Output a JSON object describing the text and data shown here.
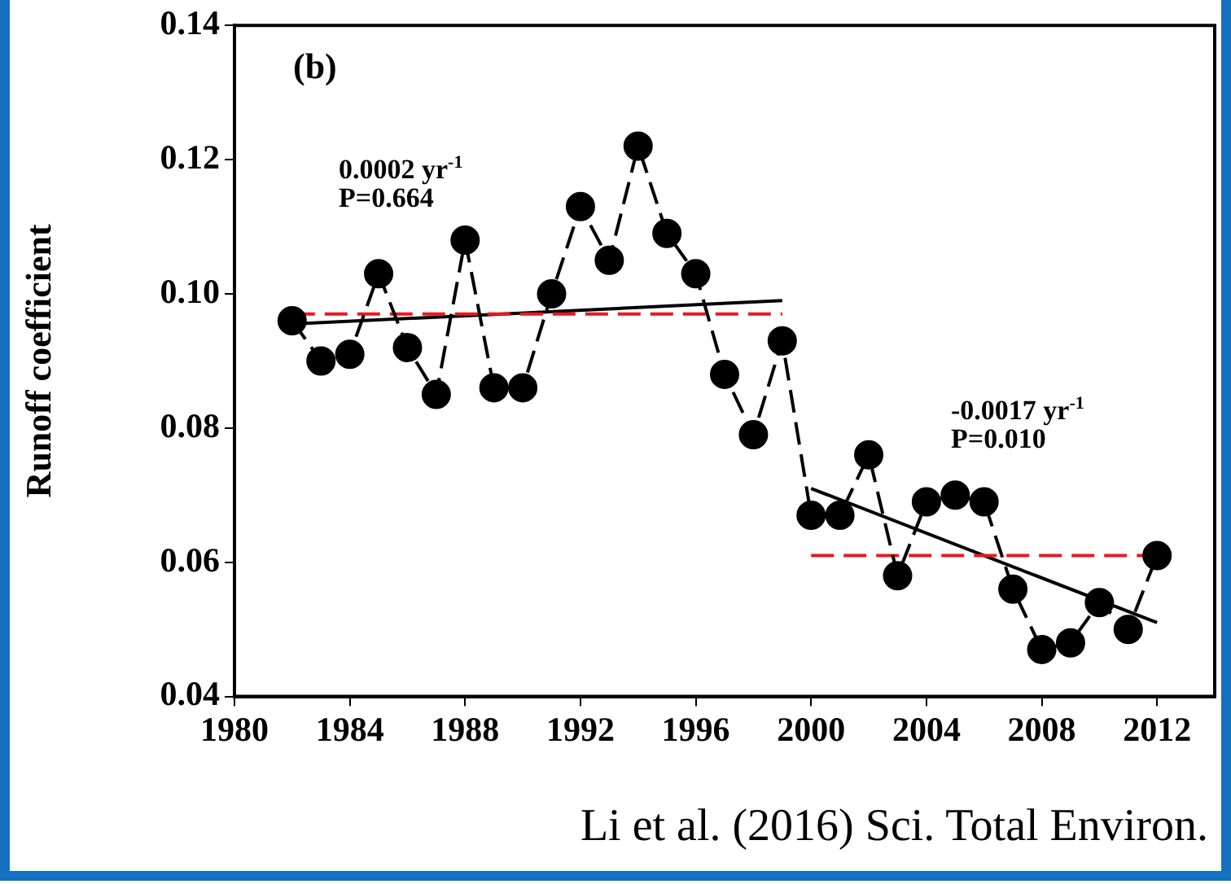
{
  "chart_data": {
    "type": "line",
    "ylabel": "Runoff coefficient",
    "x": [
      1982,
      1983,
      1984,
      1985,
      1986,
      1987,
      1988,
      1989,
      1990,
      1991,
      1992,
      1993,
      1994,
      1995,
      1996,
      1997,
      1998,
      1999,
      2000,
      2001,
      2002,
      2003,
      2004,
      2005,
      2006,
      2007,
      2008,
      2009,
      2010,
      2011,
      2012
    ],
    "series": [
      {
        "color": "#000000",
        "marker": "circle",
        "line_style": "dashed",
        "values": [
          0.096,
          0.09,
          0.091,
          0.103,
          0.092,
          0.085,
          0.108,
          0.086,
          0.086,
          0.1,
          0.113,
          0.105,
          0.122,
          0.109,
          0.103,
          0.088,
          0.079,
          0.093,
          0.067,
          0.067,
          0.076,
          0.058,
          0.069,
          0.07,
          0.069,
          0.056,
          0.047,
          0.048,
          0.054,
          0.05,
          0.061
        ]
      },
      {
        "color": "#e8191e",
        "marker": "none",
        "line_style": "dashed",
        "x": [
          1982,
          1999
        ],
        "values": [
          0.097,
          0.097
        ]
      },
      {
        "color": "#e8191e",
        "marker": "none",
        "line_style": "dashed",
        "x": [
          2000,
          2012
        ],
        "values": [
          0.061,
          0.061
        ]
      },
      {
        "color": "#000000",
        "marker": "none",
        "line_style": "solid",
        "x": [
          1982,
          1999
        ],
        "values": [
          0.0955,
          0.099
        ]
      },
      {
        "color": "#000000",
        "marker": "none",
        "line_style": "solid",
        "x": [
          2000,
          2012
        ],
        "values": [
          0.071,
          0.051
        ]
      }
    ],
    "xlim": [
      1980,
      2014
    ],
    "xticks": [
      1980,
      1984,
      1988,
      1992,
      1996,
      2000,
      2004,
      2008,
      2012
    ],
    "ylim": [
      0.04,
      0.14
    ],
    "yticks": [
      {
        "value": 0.04,
        "label": "0.04"
      },
      {
        "value": 0.06,
        "label": "0.06"
      },
      {
        "value": 0.08,
        "label": "0.08"
      },
      {
        "value": 0.1,
        "label": "0.10"
      },
      {
        "value": 0.12,
        "label": "0.12"
      },
      {
        "value": 0.14,
        "label": "0.14"
      }
    ],
    "grid": false,
    "legend": false,
    "annotations": [
      "(b)",
      "0.0002 yr$^{-1}$",
      "P=0.664",
      "-0.0017 yr$^{-1}$",
      "P=0.010",
      "Li et al. (2016) Sci. Total Environ."
    ]
  }
}
